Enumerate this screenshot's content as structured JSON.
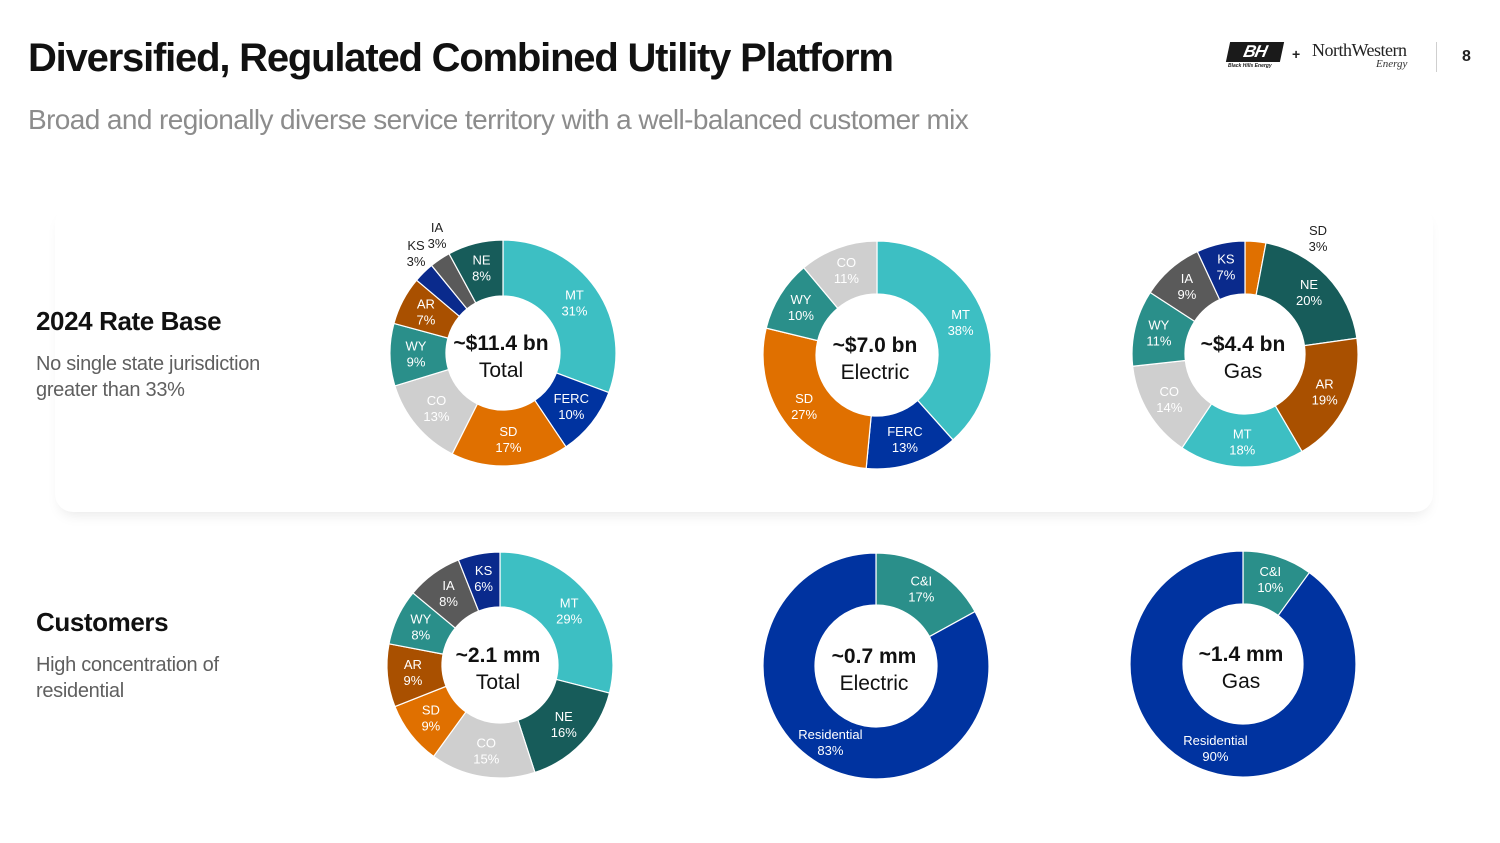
{
  "header": {
    "title": "Diversified, Regulated Combined Utility Platform",
    "subtitle": "Broad and regionally diverse service territory with a well-balanced customer mix",
    "logo_left_mark": "BH",
    "logo_left_sub": "Black Hills Energy",
    "plus": "+",
    "logo_right_name": "NorthWestern",
    "logo_right_sub": "Energy",
    "page_number": "8"
  },
  "rows": [
    {
      "heading": "2024 Rate Base",
      "desc_line1": "No single state jurisdiction",
      "desc_line2": "greater than 33%"
    },
    {
      "heading": "Customers",
      "desc_line1": "High concentration of",
      "desc_line2": "residential"
    }
  ],
  "colors": {
    "MT": "#3dbfc3",
    "FERC": "#0033a0",
    "SD": "#e07000",
    "CO": "#cfcfcf",
    "WY": "#2a8f8a",
    "AR": "#a95000",
    "KS": "#0a2a8c",
    "IA": "#5a5a5a",
    "NE": "#175c5a",
    "C&I": "#2a8f8a",
    "Residential": "#0033a0"
  },
  "chart_data": [
    {
      "id": "ratebase-total",
      "type": "donut",
      "center_value": "~$11.4 bn",
      "center_label": "Total",
      "segments": [
        {
          "label": "MT",
          "value": 31,
          "pct": "31%"
        },
        {
          "label": "FERC",
          "value": 10,
          "pct": "10%"
        },
        {
          "label": "SD",
          "value": 17,
          "pct": "17%"
        },
        {
          "label": "CO",
          "value": 13,
          "pct": "13%"
        },
        {
          "label": "WY",
          "value": 9,
          "pct": "9%"
        },
        {
          "label": "AR",
          "value": 7,
          "pct": "7%"
        },
        {
          "label": "KS",
          "value": 3,
          "pct": "3%"
        },
        {
          "label": "IA",
          "value": 3,
          "pct": "3%"
        },
        {
          "label": "NE",
          "value": 8,
          "pct": "8%"
        }
      ]
    },
    {
      "id": "ratebase-electric",
      "type": "donut",
      "center_value": "~$7.0 bn",
      "center_label": "Electric",
      "segments": [
        {
          "label": "MT",
          "value": 38,
          "pct": "38%"
        },
        {
          "label": "FERC",
          "value": 13,
          "pct": "13%"
        },
        {
          "label": "SD",
          "value": 27,
          "pct": "27%"
        },
        {
          "label": "WY",
          "value": 10,
          "pct": "10%"
        },
        {
          "label": "CO",
          "value": 11,
          "pct": "11%"
        }
      ]
    },
    {
      "id": "ratebase-gas",
      "type": "donut",
      "center_value": "~$4.4 bn",
      "center_label": "Gas",
      "segments": [
        {
          "label": "SD",
          "value": 3,
          "pct": "3%"
        },
        {
          "label": "NE",
          "value": 20,
          "pct": "20%"
        },
        {
          "label": "AR",
          "value": 19,
          "pct": "19%"
        },
        {
          "label": "MT",
          "value": 18,
          "pct": "18%"
        },
        {
          "label": "CO",
          "value": 14,
          "pct": "14%"
        },
        {
          "label": "WY",
          "value": 11,
          "pct": "11%"
        },
        {
          "label": "IA",
          "value": 9,
          "pct": "9%"
        },
        {
          "label": "KS",
          "value": 7,
          "pct": "7%"
        }
      ]
    },
    {
      "id": "customers-total",
      "type": "donut",
      "center_value": "~2.1 mm",
      "center_label": "Total",
      "segments": [
        {
          "label": "MT",
          "value": 29,
          "pct": "29%"
        },
        {
          "label": "NE",
          "value": 16,
          "pct": "16%"
        },
        {
          "label": "CO",
          "value": 15,
          "pct": "15%"
        },
        {
          "label": "SD",
          "value": 9,
          "pct": "9%"
        },
        {
          "label": "AR",
          "value": 9,
          "pct": "9%"
        },
        {
          "label": "WY",
          "value": 8,
          "pct": "8%"
        },
        {
          "label": "IA",
          "value": 8,
          "pct": "8%"
        },
        {
          "label": "KS",
          "value": 6,
          "pct": "6%"
        }
      ]
    },
    {
      "id": "customers-electric",
      "type": "donut",
      "center_value": "~0.7 mm",
      "center_label": "Electric",
      "segments": [
        {
          "label": "C&I",
          "value": 17,
          "pct": "17%"
        },
        {
          "label": "Residential",
          "value": 83,
          "pct": "83%"
        }
      ]
    },
    {
      "id": "customers-gas",
      "type": "donut",
      "center_value": "~1.4 mm",
      "center_label": "Gas",
      "segments": [
        {
          "label": "C&I",
          "value": 10,
          "pct": "10%"
        },
        {
          "label": "Residential",
          "value": 90,
          "pct": "90%"
        }
      ]
    }
  ]
}
